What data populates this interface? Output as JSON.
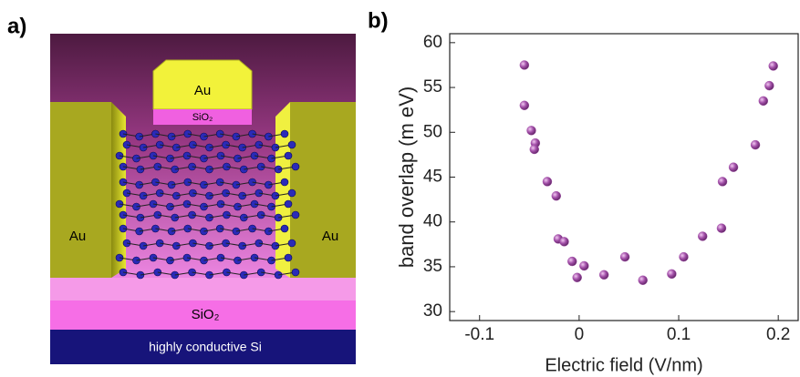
{
  "panels": {
    "a": "a)",
    "b": "b)"
  },
  "device": {
    "top_electrode": "Au",
    "top_oxide": "SiO₂",
    "left_electrode": "Au",
    "right_electrode": "Au",
    "substrate_oxide": "SiO₂",
    "substrate": "highly conductive Si"
  },
  "chart_data": {
    "type": "scatter",
    "x_label": "Electric field (V/nm)",
    "y_label": "band overlap (m eV)",
    "color": "#a24fa8",
    "x": [
      -0.055,
      -0.055,
      -0.048,
      -0.044,
      -0.045,
      -0.032,
      -0.023,
      -0.021,
      -0.015,
      -0.007,
      -0.002,
      0.005,
      0.025,
      0.046,
      0.064,
      0.093,
      0.105,
      0.124,
      0.143,
      0.144,
      0.155,
      0.177,
      0.185,
      0.191,
      0.195
    ],
    "values": [
      57.5,
      53.0,
      50.2,
      48.8,
      48.1,
      44.5,
      42.9,
      38.1,
      37.8,
      35.6,
      33.8,
      35.1,
      34.1,
      36.1,
      33.5,
      34.2,
      36.1,
      38.4,
      39.3,
      44.5,
      46.1,
      48.6,
      53.5,
      55.2,
      57.4
    ],
    "xlim": [
      -0.13,
      0.22
    ],
    "ylim": [
      29,
      61
    ],
    "xticks": [
      -0.1,
      0,
      0.1,
      0.2
    ],
    "yticks": [
      30,
      35,
      40,
      45,
      50,
      55,
      60
    ]
  }
}
